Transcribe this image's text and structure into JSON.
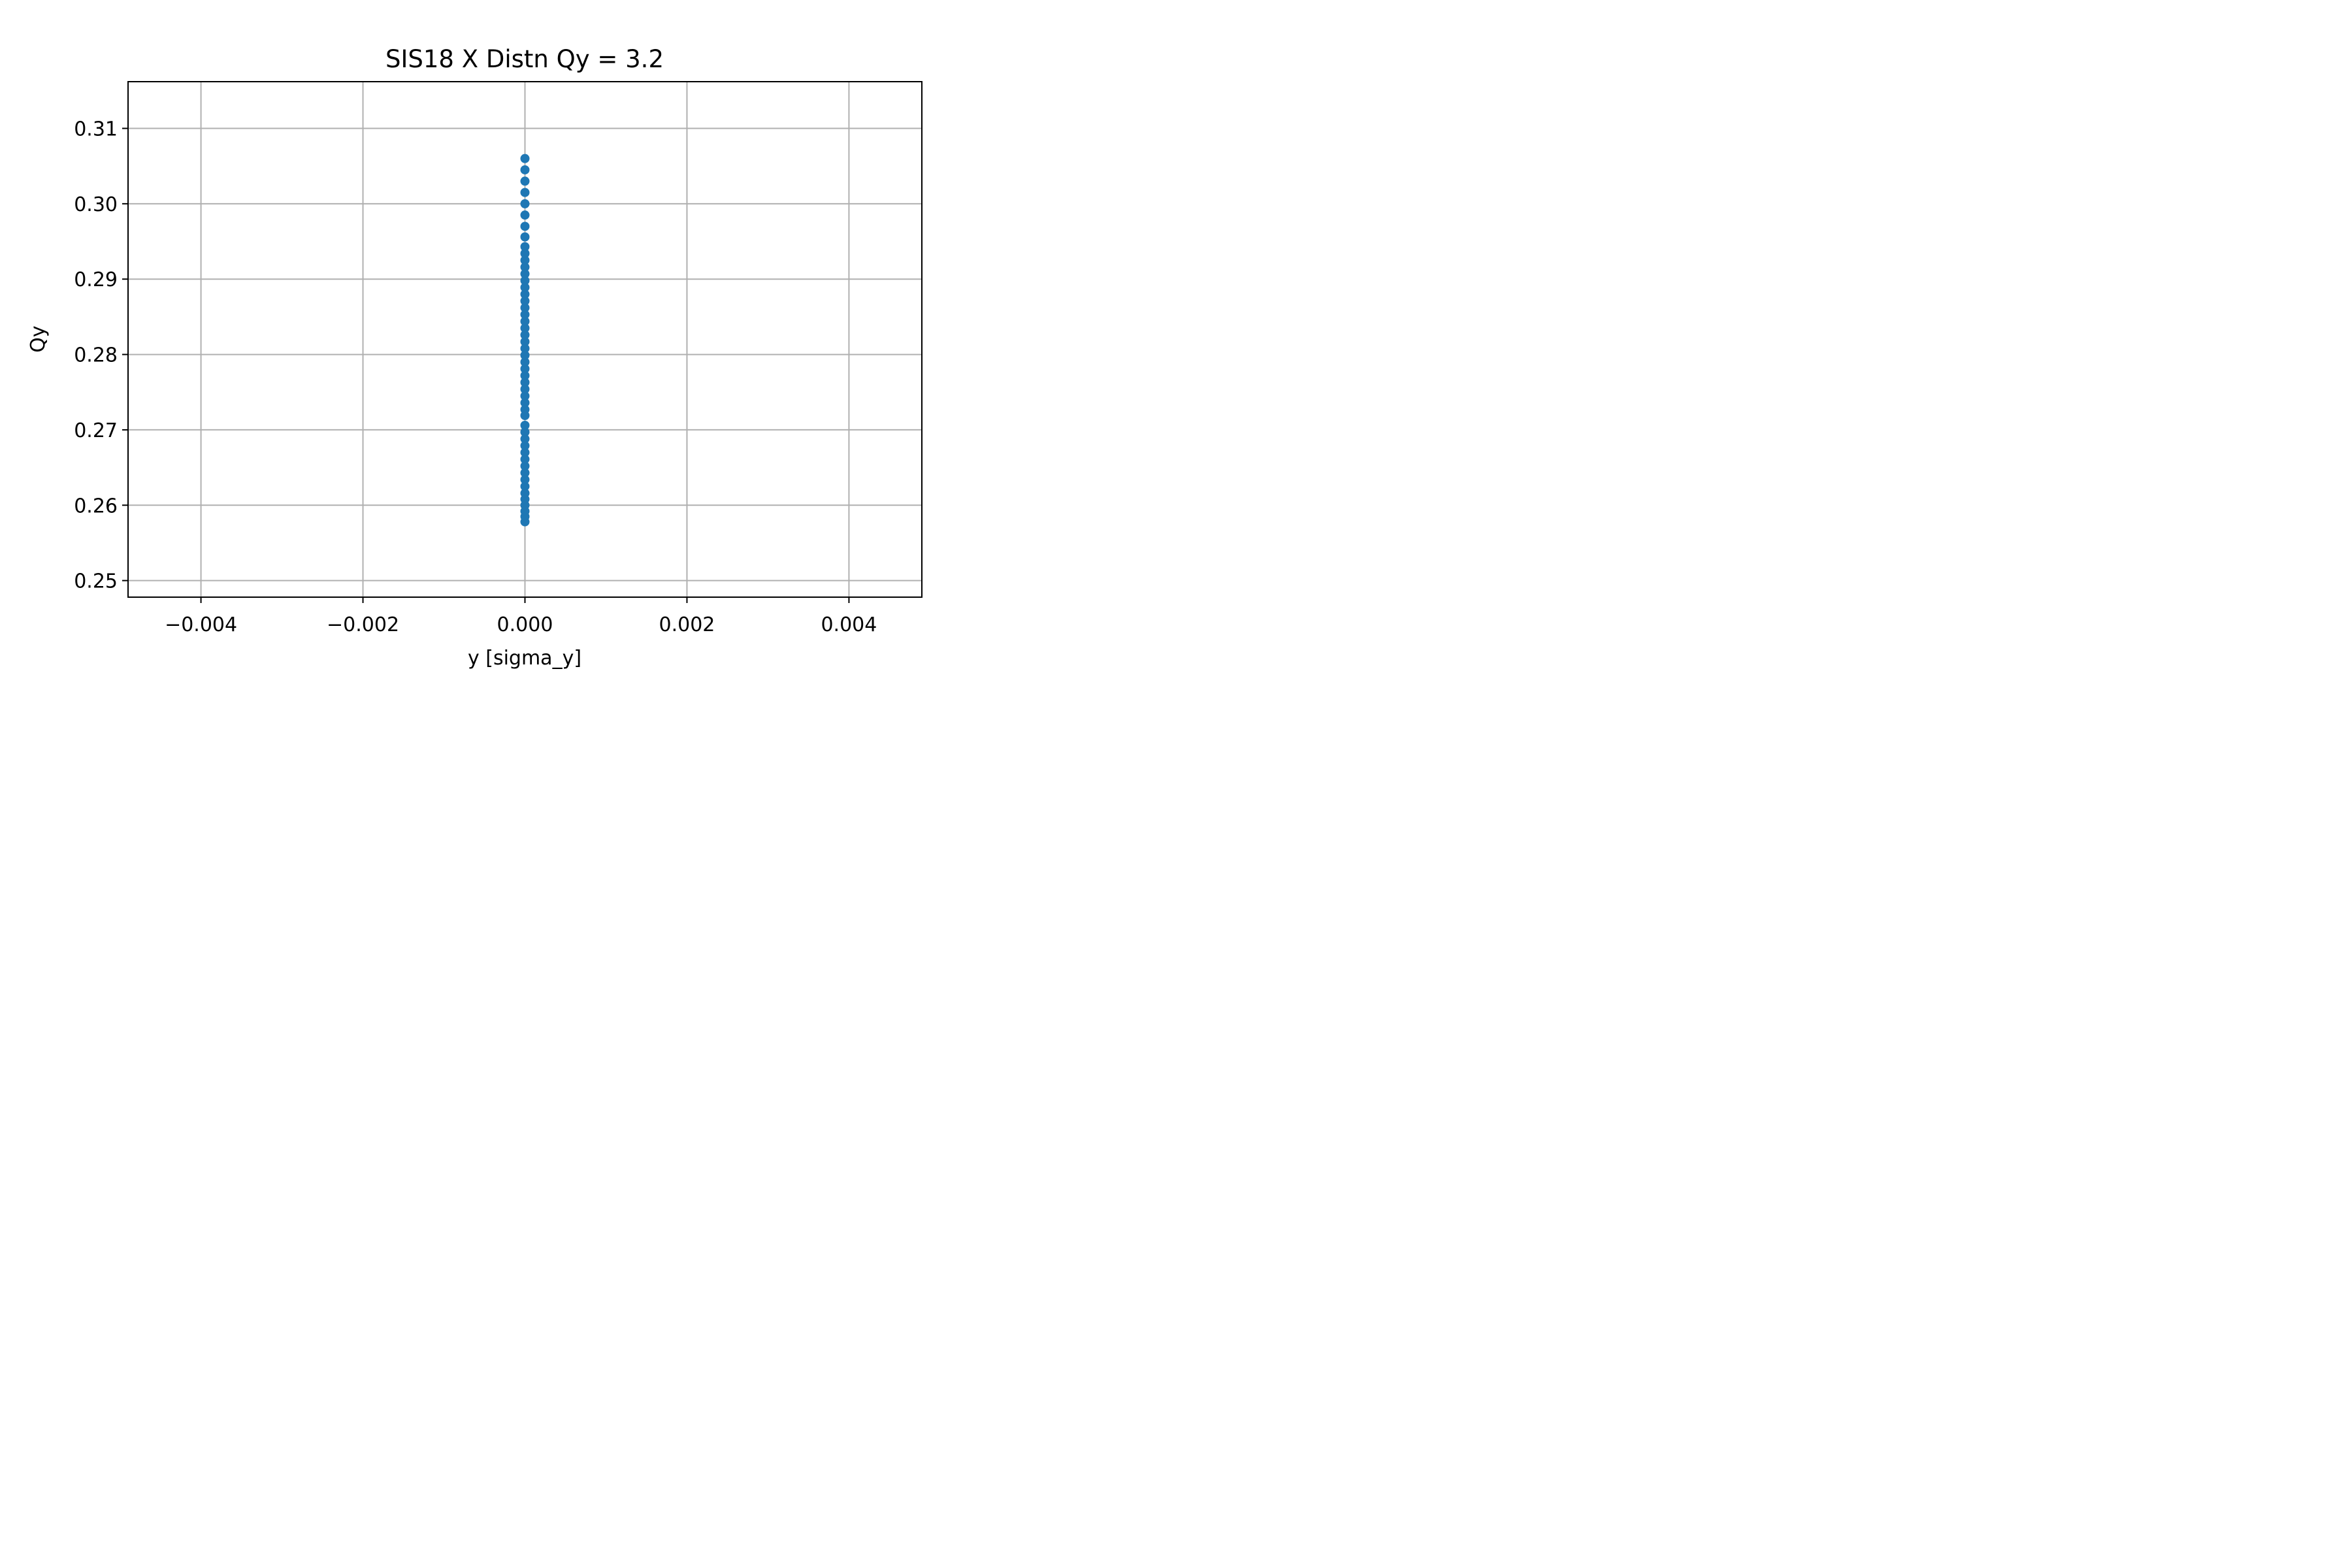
{
  "chart_data": {
    "type": "scatter",
    "title": "SIS18 X Distn Qy = 3.2",
    "xlabel": "y [sigma_y]",
    "ylabel": "Qy",
    "xlim": [
      -0.0049,
      0.0049
    ],
    "ylim": [
      0.2478,
      0.3162
    ],
    "xticks": [
      -0.004,
      -0.002,
      0.0,
      0.002,
      0.004
    ],
    "xtick_labels": [
      "−0.004",
      "−0.002",
      "0.000",
      "0.002",
      "0.004"
    ],
    "yticks": [
      0.25,
      0.26,
      0.27,
      0.28,
      0.29,
      0.3,
      0.31
    ],
    "ytick_labels": [
      "0.25",
      "0.26",
      "0.27",
      "0.28",
      "0.29",
      "0.30",
      "0.31"
    ],
    "grid": true,
    "marker_color": "#1f77b4",
    "series": [
      {
        "x": [
          0,
          0,
          0,
          0,
          0,
          0,
          0,
          0,
          0,
          0,
          0,
          0,
          0,
          0,
          0,
          0,
          0,
          0,
          0,
          0,
          0,
          0,
          0,
          0,
          0,
          0,
          0,
          0,
          0,
          0,
          0,
          0,
          0,
          0,
          0,
          0,
          0,
          0,
          0,
          0,
          0,
          0,
          0,
          0,
          0,
          0,
          0,
          0,
          0,
          0
        ],
        "y": [
          0.2578,
          0.2585,
          0.2592,
          0.26,
          0.2608,
          0.2616,
          0.2625,
          0.2634,
          0.2643,
          0.2652,
          0.2661,
          0.267,
          0.2679,
          0.2688,
          0.2697,
          0.2706,
          0.2719,
          0.2727,
          0.2736,
          0.2745,
          0.2754,
          0.2763,
          0.2772,
          0.2781,
          0.279,
          0.2799,
          0.2808,
          0.2817,
          0.2826,
          0.2835,
          0.2844,
          0.2853,
          0.2862,
          0.2871,
          0.288,
          0.2889,
          0.2898,
          0.2907,
          0.2916,
          0.2925,
          0.2934,
          0.2943,
          0.2956,
          0.297,
          0.2985,
          0.3,
          0.3015,
          0.303,
          0.3045,
          0.306
        ]
      }
    ]
  }
}
